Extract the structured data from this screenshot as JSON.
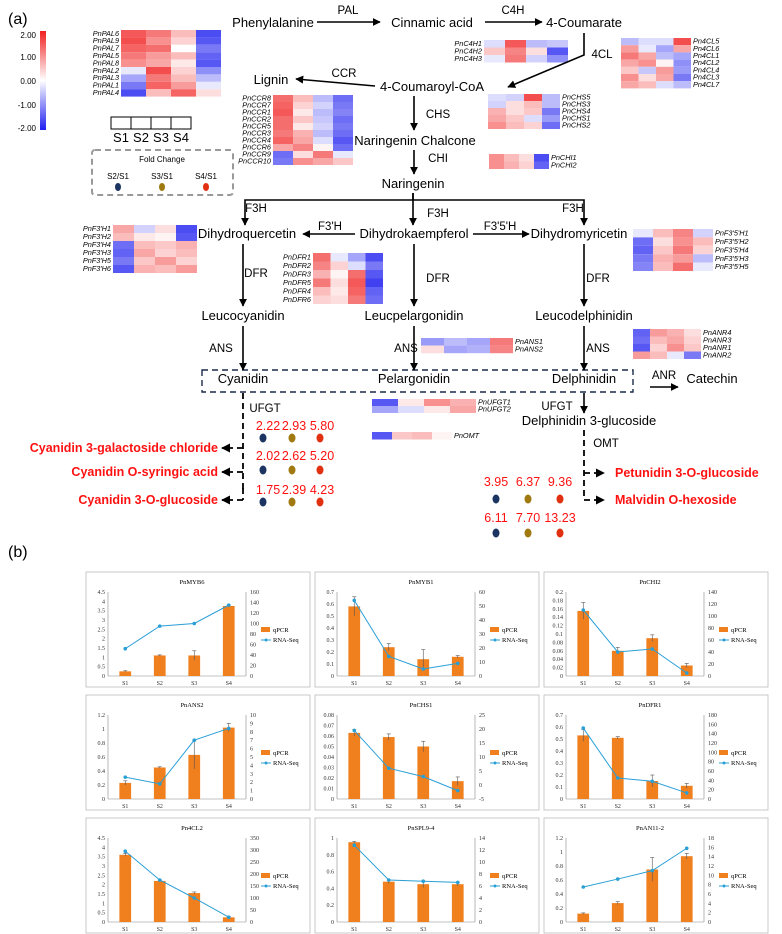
{
  "panel_labels": {
    "a": "(a)",
    "b": "(b)"
  },
  "colorbar": {
    "ticks": [
      "2.00",
      "1.00",
      "0.00",
      "-1.00",
      "-2.00"
    ],
    "low": "#1f1ff0",
    "mid": "#ffffff",
    "high": "#f02020"
  },
  "sample_labels": [
    "S1",
    "S2",
    "S3",
    "S4"
  ],
  "fold_change": {
    "title": "Fold Change",
    "items": [
      {
        "label": "S2/S1",
        "color": "#1c3461"
      },
      {
        "label": "S3/S1",
        "color": "#a07a10"
      },
      {
        "label": "S4/S1",
        "color": "#e03010"
      }
    ]
  },
  "nodes": {
    "phenylalanine": "Phenylalanine",
    "cinnamic_acid": "Cinnamic acid",
    "coumarate": "4-Coumarate",
    "coumaroyl_coa": "4-Coumaroyl-CoA",
    "lignin": "Lignin",
    "naringenin_chalcone": "Naringenin Chalcone",
    "naringenin": "Naringenin",
    "dihydroquercetin": "Dihydroquercetin",
    "dihydrokaempferol": "Dihydrokaempferol",
    "dihydromyricetin": "Dihydromyricetin",
    "leucocyanidin": "Leucocyanidin",
    "leucpelargonidin": "Leucpelargonidin",
    "leucodelphinidin": "Leucodelphinidin",
    "cyanidin": "Cyanidin",
    "pelargonidin": "Pelargonidin",
    "delphinidin": "Delphinidin",
    "catechin": "Catechin",
    "delphinidin_glucoside": "Delphinidin 3-glucoside"
  },
  "enzymes": {
    "pal": "PAL",
    "c4h": "C4H",
    "fourcl": "4CL",
    "ccr": "CCR",
    "chs": "CHS",
    "chi": "CHI",
    "f3h_left": "F3H",
    "f3h_mid": "F3H",
    "f3h_right": "F3H",
    "f3prime_h": "F3'H",
    "f35h": "F3'5'H",
    "dfr_left": "DFR",
    "dfr_mid": "DFR",
    "dfr_right": "DFR",
    "ans_left": "ANS",
    "ans_mid": "ANS",
    "ans_right": "ANS",
    "anr": "ANR",
    "ufgt_left": "UFGT",
    "ufgt_right": "UFGT",
    "omt": "OMT"
  },
  "heatmaps": [
    {
      "id": "pal",
      "genes": [
        "PnPAL6",
        "PnPAL9",
        "PnPAL7",
        "PnPAL5",
        "PnPAL8",
        "PnPAL2",
        "PnPAL3",
        "PnPAL1",
        "PnPAL4"
      ],
      "values": [
        [
          1.5,
          1.2,
          0.6,
          -1.6
        ],
        [
          1.6,
          1.0,
          0.4,
          -1.5
        ],
        [
          1.4,
          1.3,
          0.0,
          -1.2
        ],
        [
          1.2,
          0.9,
          0.6,
          -1.4
        ],
        [
          1.0,
          0.8,
          0.2,
          -1.5
        ],
        [
          -0.2,
          1.6,
          0.4,
          -1.0
        ],
        [
          -0.8,
          1.2,
          0.6,
          -0.6
        ],
        [
          -1.2,
          1.4,
          0.9,
          -0.2
        ],
        [
          -1.6,
          0.6,
          1.4,
          0.3
        ]
      ]
    },
    {
      "id": "c4h",
      "genes": [
        "PnC4H1",
        "PnC4H2",
        "PnC4H3"
      ],
      "values": [
        [
          -0.3,
          1.5,
          -0.6,
          -0.5
        ],
        [
          0.5,
          1.1,
          0.3,
          -1.5
        ],
        [
          -0.2,
          1.2,
          -0.4,
          -1.0
        ]
      ]
    },
    {
      "id": "4cl",
      "genes": [
        "Pn4CL5",
        "Pn4CL6",
        "Pn4CL1",
        "Pn4CL2",
        "Pn4CL4",
        "Pn4CL3",
        "Pn4CL7"
      ],
      "values": [
        [
          -0.6,
          -0.3,
          -0.3,
          1.6
        ],
        [
          0.9,
          -0.2,
          -0.8,
          0.8
        ],
        [
          1.2,
          0.8,
          -0.6,
          -0.8
        ],
        [
          0.8,
          1.0,
          0.1,
          -1.0
        ],
        [
          0.5,
          -0.5,
          0.9,
          -0.9
        ],
        [
          1.0,
          0.3,
          0.8,
          -1.2
        ],
        [
          0.8,
          0.6,
          -0.3,
          -0.6
        ]
      ]
    },
    {
      "id": "ccr",
      "genes": [
        "PnCCR8",
        "PnCCR7",
        "PnCCR1",
        "PnCCR2",
        "PnCCR5",
        "PnCCR3",
        "PnCCR4",
        "PnCCR6",
        "PnCCR9",
        "PnCCR10"
      ],
      "values": [
        [
          1.3,
          0.6,
          -0.6,
          -1.3
        ],
        [
          1.4,
          0.4,
          -0.4,
          -1.2
        ],
        [
          1.5,
          0.2,
          -0.6,
          -1.1
        ],
        [
          1.3,
          0.5,
          -0.5,
          -1.3
        ],
        [
          1.3,
          0.2,
          -0.4,
          -1.2
        ],
        [
          1.2,
          0.7,
          -0.6,
          -1.3
        ],
        [
          1.4,
          0.8,
          -0.3,
          -1.5
        ],
        [
          0.8,
          1.1,
          0.1,
          -1.3
        ],
        [
          -1.3,
          0.3,
          1.2,
          -0.2
        ],
        [
          -1.2,
          1.0,
          0.8,
          0.5
        ]
      ]
    },
    {
      "id": "chs",
      "genes": [
        "PnCHS5",
        "PnCHS3",
        "PnCHS4",
        "PnCHS1",
        "PnCHS2"
      ],
      "values": [
        [
          -0.3,
          -0.4,
          1.6,
          -0.6
        ],
        [
          -0.4,
          0.3,
          0.6,
          -0.6
        ],
        [
          0.7,
          0.3,
          0.5,
          -1.2
        ],
        [
          0.8,
          0.5,
          -0.3,
          -0.9
        ],
        [
          1.0,
          0.6,
          0.4,
          -1.3
        ]
      ]
    },
    {
      "id": "chi",
      "genes": [
        "PnCHI1",
        "PnCHI2"
      ],
      "values": [
        [
          1.0,
          0.6,
          0.3,
          -1.6
        ],
        [
          1.0,
          0.7,
          0.4,
          -1.4
        ]
      ]
    },
    {
      "id": "f3h",
      "genes": [
        "PnF3'H1",
        "PnF3'H2",
        "PnF3'H4",
        "PnF3'H3",
        "PnF3'H5",
        "PnF3'H6"
      ],
      "values": [
        [
          0.8,
          -0.4,
          0.3,
          -1.6
        ],
        [
          0.6,
          0.2,
          0.1,
          -1.5
        ],
        [
          -1.3,
          0.6,
          0.5,
          0.7
        ],
        [
          -1.4,
          0.8,
          0.4,
          0.6
        ],
        [
          -1.2,
          0.5,
          0.9,
          0.4
        ],
        [
          -1.5,
          0.7,
          0.6,
          0.9
        ]
      ]
    },
    {
      "id": "dfr",
      "genes": [
        "PnDFR1",
        "PnDFR2",
        "PnDFR3",
        "PnDFR5",
        "PnDFR4",
        "PnDFR6"
      ],
      "values": [
        [
          1.3,
          -0.2,
          -0.8,
          -1.6
        ],
        [
          1.1,
          0.4,
          -0.3,
          -1.2
        ],
        [
          0.7,
          0.1,
          1.3,
          -1.5
        ],
        [
          1.2,
          0.3,
          1.5,
          -1.7
        ],
        [
          0.6,
          0.2,
          1.4,
          -1.4
        ],
        [
          0.4,
          0.3,
          1.2,
          -1.3
        ]
      ]
    },
    {
      "id": "f35h",
      "genes": [
        "PnF3'5'H1",
        "PnF3'5'H2",
        "PnF3'5'H4",
        "PnF3'5'H3",
        "PnF3'5'H5"
      ],
      "values": [
        [
          -0.2,
          0.6,
          1.1,
          -0.4
        ],
        [
          -1.3,
          0.3,
          1.0,
          0.6
        ],
        [
          -1.4,
          0.5,
          1.2,
          0.4
        ],
        [
          -1.2,
          0.7,
          0.9,
          -0.6
        ],
        [
          -1.1,
          0.6,
          1.3,
          -0.2
        ]
      ]
    },
    {
      "id": "ans",
      "genes": [
        "PnANS1",
        "PnANS2"
      ],
      "values": [
        [
          -0.9,
          -0.6,
          -0.8,
          1.2
        ],
        [
          0.3,
          -0.8,
          -0.7,
          1.1
        ]
      ]
    },
    {
      "id": "anr",
      "genes": [
        "PnANR4",
        "PnANR3",
        "PnANR1",
        "PnANR2"
      ],
      "values": [
        [
          -1.4,
          0.9,
          0.7,
          0.3
        ],
        [
          -1.3,
          0.6,
          0.8,
          0.4
        ],
        [
          -1.5,
          0.4,
          1.0,
          0.5
        ],
        [
          0.9,
          0.6,
          -0.2,
          -1.2
        ]
      ]
    },
    {
      "id": "ufgt",
      "genes": [
        "PnUFGT1",
        "PnUFGT2"
      ],
      "values": [
        [
          -1.5,
          0.2,
          1.0,
          0.7
        ],
        [
          -0.8,
          -0.3,
          0.2,
          0.8
        ]
      ]
    },
    {
      "id": "omt",
      "genes": [
        "PnOMT"
      ],
      "values": [
        [
          -1.5,
          0.5,
          0.6,
          0.1
        ]
      ]
    }
  ],
  "products_left": [
    {
      "name": "Cyanidin 3-galactoside chloride",
      "fc": [
        "2.22",
        "2.93",
        "5.80"
      ]
    },
    {
      "name": "Cyanidin O-syringic acid",
      "fc": [
        "2.02",
        "2.62",
        "5.20"
      ]
    },
    {
      "name": "Cyanidin 3-O-glucoside",
      "fc": [
        "1.75",
        "2.39",
        "4.23"
      ]
    }
  ],
  "products_right": [
    {
      "name": "Petunidin 3-O-glucoside",
      "fc": [
        "3.95",
        "6.37",
        "9.36"
      ]
    },
    {
      "name": "Malvidin O-hexoside",
      "fc": [
        "6.11",
        "7.70",
        "13.23"
      ]
    }
  ],
  "chart_data": [
    {
      "type": "bar+line",
      "title": "PnMYB6",
      "categories": [
        "S1",
        "S2",
        "S3",
        "S4"
      ],
      "series": [
        {
          "name": "qPCR",
          "values": [
            0.25,
            1.1,
            1.1,
            3.75
          ],
          "err": [
            0.03,
            0.03,
            0.25,
            0.05
          ]
        },
        {
          "name": "RNA-Seq",
          "values": [
            52,
            95,
            100,
            135
          ]
        }
      ],
      "ylim_left": [
        0,
        4.5
      ],
      "left_ticks": [
        "0",
        "0.5",
        "1",
        "1.5",
        "2",
        "2.5",
        "3",
        "3.5",
        "4",
        "4.5"
      ],
      "ylim_right": [
        0,
        160
      ],
      "right_ticks": [
        "0",
        "20",
        "40",
        "60",
        "80",
        "100",
        "120",
        "140",
        "160"
      ]
    },
    {
      "type": "bar+line",
      "title": "PnMYB1",
      "categories": [
        "S1",
        "S2",
        "S3",
        "S4"
      ],
      "series": [
        {
          "name": "qPCR",
          "values": [
            0.58,
            0.24,
            0.14,
            0.16
          ],
          "err": [
            0.08,
            0.03,
            0.08,
            0.01
          ]
        },
        {
          "name": "RNA-Seq",
          "values": [
            54,
            14,
            5,
            9
          ]
        }
      ],
      "ylim_left": [
        0,
        0.7
      ],
      "left_ticks": [
        "0",
        "0.1",
        "0.2",
        "0.3",
        "0.4",
        "0.5",
        "0.6",
        "0.7"
      ],
      "ylim_right": [
        0,
        60
      ],
      "right_ticks": [
        "0",
        "10",
        "20",
        "30",
        "40",
        "50",
        "60"
      ]
    },
    {
      "type": "bar+line",
      "title": "PnCHI2",
      "categories": [
        "S1",
        "S2",
        "S3",
        "S4"
      ],
      "series": [
        {
          "name": "qPCR",
          "values": [
            0.155,
            0.06,
            0.09,
            0.025
          ],
          "err": [
            0.02,
            0.008,
            0.008,
            0.005
          ]
        },
        {
          "name": "RNA-Seq",
          "values": [
            110,
            40,
            45,
            5
          ]
        }
      ],
      "ylim_left": [
        0,
        0.2
      ],
      "left_ticks": [
        "0",
        "0.02",
        "0.04",
        "0.06",
        "0.08",
        "0.1",
        "0.12",
        "0.14",
        "0.16",
        "0.18",
        "0.2"
      ],
      "ylim_right": [
        0,
        140
      ],
      "right_ticks": [
        "0",
        "20",
        "40",
        "60",
        "80",
        "100",
        "120",
        "140"
      ]
    },
    {
      "type": "bar+line",
      "title": "PnANS2",
      "categories": [
        "S1",
        "S2",
        "S3",
        "S4"
      ],
      "series": [
        {
          "name": "qPCR",
          "values": [
            0.23,
            0.45,
            0.63,
            1.02
          ],
          "err": [
            0.03,
            0.01,
            0.2,
            0.06
          ]
        },
        {
          "name": "RNA-Seq",
          "values": [
            2.6,
            1.8,
            7,
            8.4
          ]
        }
      ],
      "ylim_left": [
        0,
        1.2
      ],
      "left_ticks": [
        "0",
        "0.2",
        "0.4",
        "0.6",
        "0.8",
        "1",
        "1.2"
      ],
      "ylim_right": [
        0,
        10
      ],
      "right_ticks": [
        "0",
        "1",
        "2",
        "3",
        "4",
        "5",
        "6",
        "7",
        "8",
        "9",
        "10"
      ]
    },
    {
      "type": "bar+line",
      "title": "PnCHS1",
      "categories": [
        "S1",
        "S2",
        "S3",
        "S4"
      ],
      "series": [
        {
          "name": "qPCR",
          "values": [
            0.063,
            0.059,
            0.05,
            0.017
          ],
          "err": [
            0.003,
            0.003,
            0.005,
            0.004
          ]
        },
        {
          "name": "RNA-Seq",
          "values": [
            19.5,
            6,
            3,
            -2
          ]
        }
      ],
      "ylim_left": [
        0,
        0.08
      ],
      "left_ticks": [
        "0",
        "0.01",
        "0.02",
        "0.03",
        "0.04",
        "0.05",
        "0.06",
        "0.07",
        "0.08"
      ],
      "ylim_right": [
        -5,
        25
      ],
      "right_ticks": [
        "-5",
        "0",
        "5",
        "10",
        "15",
        "20",
        "25"
      ]
    },
    {
      "type": "bar+line",
      "title": "PnDFR1",
      "categories": [
        "S1",
        "S2",
        "S3",
        "S4"
      ],
      "series": [
        {
          "name": "qPCR",
          "values": [
            0.53,
            0.51,
            0.15,
            0.11
          ],
          "err": [
            0.05,
            0.01,
            0.05,
            0.02
          ]
        },
        {
          "name": "RNA-Seq",
          "values": [
            152,
            45,
            38,
            13
          ]
        }
      ],
      "ylim_left": [
        0,
        0.7
      ],
      "left_ticks": [
        "0",
        "0.1",
        "0.2",
        "0.3",
        "0.4",
        "0.5",
        "0.6",
        "0.7"
      ],
      "ylim_right": [
        0,
        180
      ],
      "right_ticks": [
        "0",
        "20",
        "40",
        "60",
        "80",
        "100",
        "120",
        "140",
        "160",
        "180"
      ]
    },
    {
      "type": "bar+line",
      "title": "Pn4CL2",
      "categories": [
        "S1",
        "S2",
        "S3",
        "S4"
      ],
      "series": [
        {
          "name": "qPCR",
          "values": [
            3.6,
            2.2,
            1.55,
            0.25
          ],
          "err": [
            0.08,
            0.05,
            0.06,
            0.04
          ]
        },
        {
          "name": "RNA-Seq",
          "values": [
            295,
            175,
            100,
            20
          ]
        }
      ],
      "ylim_left": [
        0,
        4.5
      ],
      "left_ticks": [
        "0",
        "0.5",
        "1",
        "1.5",
        "2",
        "2.5",
        "3",
        "3.5",
        "4",
        "4.5"
      ],
      "ylim_right": [
        0,
        350
      ],
      "right_ticks": [
        "0",
        "50",
        "100",
        "150",
        "200",
        "250",
        "300",
        "350"
      ]
    },
    {
      "type": "bar+line",
      "title": "PnSPL9-4",
      "categories": [
        "S1",
        "S2",
        "S3",
        "S4"
      ],
      "series": [
        {
          "name": "qPCR",
          "values": [
            0.95,
            0.48,
            0.45,
            0.45
          ],
          "err": [
            0.01,
            0.02,
            0.04,
            0.02
          ]
        },
        {
          "name": "RNA-Seq",
          "values": [
            12.8,
            7,
            6.8,
            6.6
          ]
        }
      ],
      "ylim_left": [
        0,
        1
      ],
      "left_ticks": [
        "0",
        "0.2",
        "0.4",
        "0.6",
        "0.8",
        "1"
      ],
      "ylim_right": [
        0,
        14
      ],
      "right_ticks": [
        "0",
        "2",
        "4",
        "6",
        "8",
        "10",
        "12",
        "14"
      ]
    },
    {
      "type": "bar+line",
      "title": "PnAN11-2",
      "categories": [
        "S1",
        "S2",
        "S3",
        "S4"
      ],
      "series": [
        {
          "name": "qPCR",
          "values": [
            0.12,
            0.27,
            0.75,
            0.94
          ],
          "err": [
            0.01,
            0.02,
            0.17,
            0.04
          ]
        },
        {
          "name": "RNA-Seq",
          "values": [
            7.5,
            9.2,
            11,
            15.8
          ]
        }
      ],
      "ylim_left": [
        0,
        1.2
      ],
      "left_ticks": [
        "0",
        "0.2",
        "0.4",
        "0.6",
        "0.8",
        "1",
        "1.2"
      ],
      "ylim_right": [
        0,
        18
      ],
      "right_ticks": [
        "0",
        "2",
        "4",
        "6",
        "8",
        "10",
        "12",
        "14",
        "16",
        "18"
      ]
    }
  ]
}
